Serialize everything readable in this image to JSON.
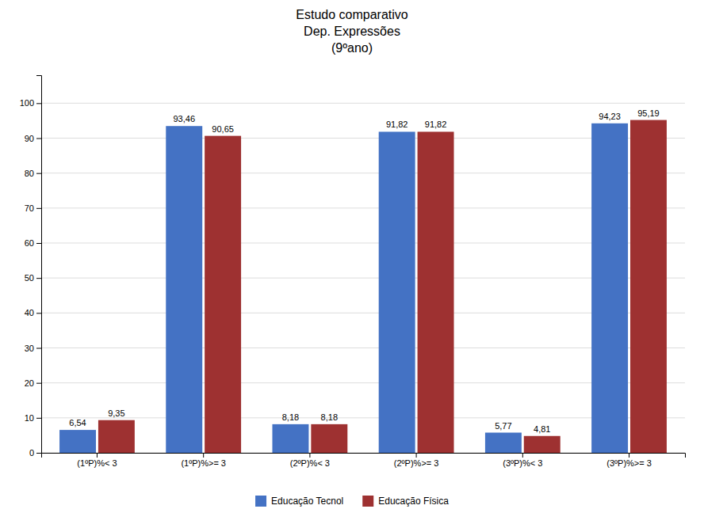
{
  "chart_data": {
    "type": "bar",
    "title": "Estudo comparativo\nDep. Expressões\n(9ºano)",
    "categories": [
      "(1ºP)%< 3",
      "(1ºP)%>= 3",
      "(2ºP)%< 3",
      "(2ºP)%>= 3",
      "(3ºP)%< 3",
      "(3ºP)%>= 3"
    ],
    "series": [
      {
        "name": "Educação Tecnol",
        "color": "#4472C4",
        "values": [
          6.54,
          93.46,
          8.18,
          91.82,
          5.77,
          94.23
        ],
        "value_labels": [
          "6,54",
          "93,46",
          "8,18",
          "91,82",
          "5,77",
          "94,23"
        ]
      },
      {
        "name": "Educação Física",
        "color": "#9E3131",
        "values": [
          9.35,
          90.65,
          8.18,
          91.82,
          4.81,
          95.19
        ],
        "value_labels": [
          "9,35",
          "90,65",
          "8,18",
          "91,82",
          "4,81",
          "95,19"
        ]
      }
    ],
    "ylim": [
      0,
      108
    ],
    "yticks": [
      0,
      10,
      20,
      30,
      40,
      50,
      60,
      70,
      80,
      90,
      100
    ],
    "grid": true,
    "data_labels": true,
    "legend": "bottom"
  }
}
